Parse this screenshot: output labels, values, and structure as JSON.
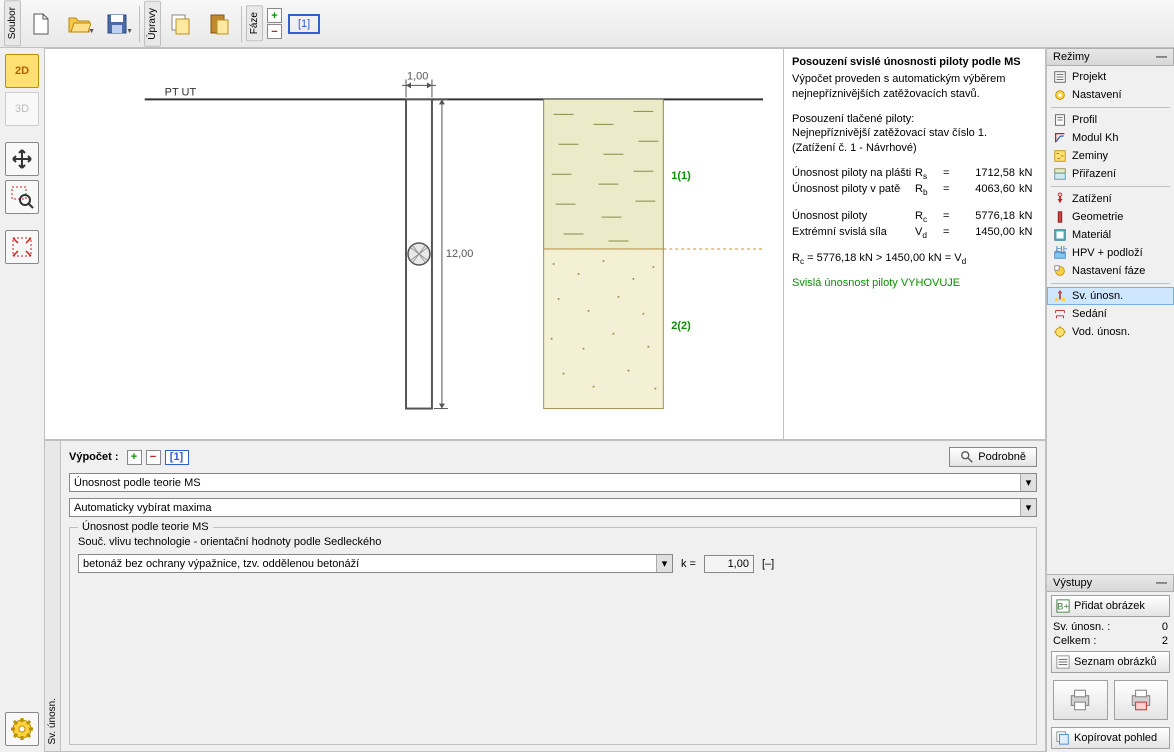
{
  "toolbar": {
    "soubor": "Soubor",
    "upravy": "Úpravy",
    "faze": "Fáze",
    "stage_num": "[1]"
  },
  "view": {
    "pt_ut": "PT UT",
    "dim_w": "1,00",
    "dim_h": "12,00",
    "layer1": "1(1)",
    "layer2": "2(2)"
  },
  "results": {
    "title": "Posouzení svislé únosnosti piloty podle MS",
    "sub1": "Výpočet proveden s automatickým výběrem nejnepříznivějších zatěžovacích stavů.",
    "sec2a": "Posouzení tlačené piloty:",
    "sec2b": "Nejnepříznivější zatěžovací stav číslo 1.",
    "sec2c": "(Zatížení č. 1 - Návrhové)",
    "r1_lab": "Únosnost piloty na plášti",
    "r1_sym": "R",
    "r1_sub": "s",
    "r1_val": "1712,58",
    "r1_u": "kN",
    "r2_lab": "Únosnost piloty v patě",
    "r2_sym": "R",
    "r2_sub": "b",
    "r2_val": "4063,60",
    "r2_u": "kN",
    "r3_lab": "Únosnost piloty",
    "r3_sym": "R",
    "r3_sub": "c",
    "r3_val": "5776,18",
    "r3_u": "kN",
    "r4_lab": "Extrémní svislá síla",
    "r4_sym": "V",
    "r4_sub": "d",
    "r4_val": "1450,00",
    "r4_u": "kN",
    "cmp_a": "R",
    "cmp_as": "c",
    "cmp_av": " = 5776,18 kN > 1450,00 kN = ",
    "cmp_b": "V",
    "cmp_bs": "d",
    "ok": "Svislá únosnost piloty VYHOVUJE"
  },
  "modes": {
    "head": "Režimy",
    "items": [
      "Projekt",
      "Nastavení",
      "Profil",
      "Modul Kh",
      "Zeminy",
      "Přiřazení",
      "Zatížení",
      "Geometrie",
      "Materiál",
      "HPV + podloží",
      "Nastavení fáze",
      "Sv. únosn.",
      "Sedání",
      "Vod. únosn."
    ],
    "selected": 11
  },
  "outputs": {
    "head": "Výstupy",
    "add": "Přidat obrázek",
    "r1_lab": "Sv. únosn. :",
    "r1_val": "0",
    "r2_lab": "Celkem :",
    "r2_val": "2",
    "list": "Seznam obrázků",
    "copy": "Kopírovat pohled"
  },
  "dock": {
    "tab": "Sv. únosn.",
    "calc": "Výpočet :",
    "stage": "[1]",
    "detail": "Podrobně",
    "combo1": "Únosnost podle teorie MS",
    "combo2": "Automaticky vybírat maxima",
    "group": "Únosnost podle teorie MS",
    "tech_label": "Souč. vlivu technologie - orientační hodnoty podle Sedleckého",
    "tech_combo": "betonáž bez ochrany výpažnice, tzv. oddělenou betonáží",
    "k_lab": "k  =",
    "k_val": "1,00",
    "k_unit": "[–]"
  },
  "colors": {
    "soil1_fill": "#ecebc9",
    "soil1_stroke": "#8a8a4a",
    "soil2_fill": "#f3f0d5",
    "soil2_stroke": "#a09050",
    "layer_lbl": "#0a9000"
  }
}
